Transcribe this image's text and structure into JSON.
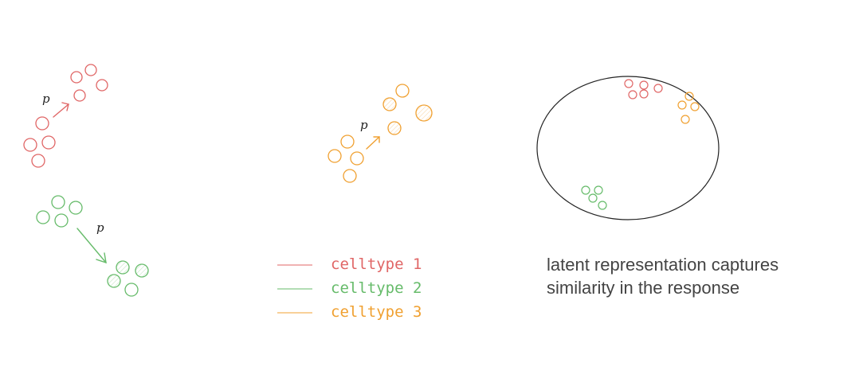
{
  "colors": {
    "celltype_1": "#e06666",
    "celltype_2": "#66bb6a",
    "celltype_3": "#f0a030",
    "outline": "#222222",
    "caption": "#444444"
  },
  "perturbation": {
    "label_1": "p",
    "label_2": "p",
    "label_3": "p"
  },
  "legend": {
    "item_1": "celltype 1",
    "item_2": "celltype 2",
    "item_3": "celltype 3"
  },
  "caption": {
    "line_1": "latent representation captures",
    "line_2": "similarity in the response"
  }
}
